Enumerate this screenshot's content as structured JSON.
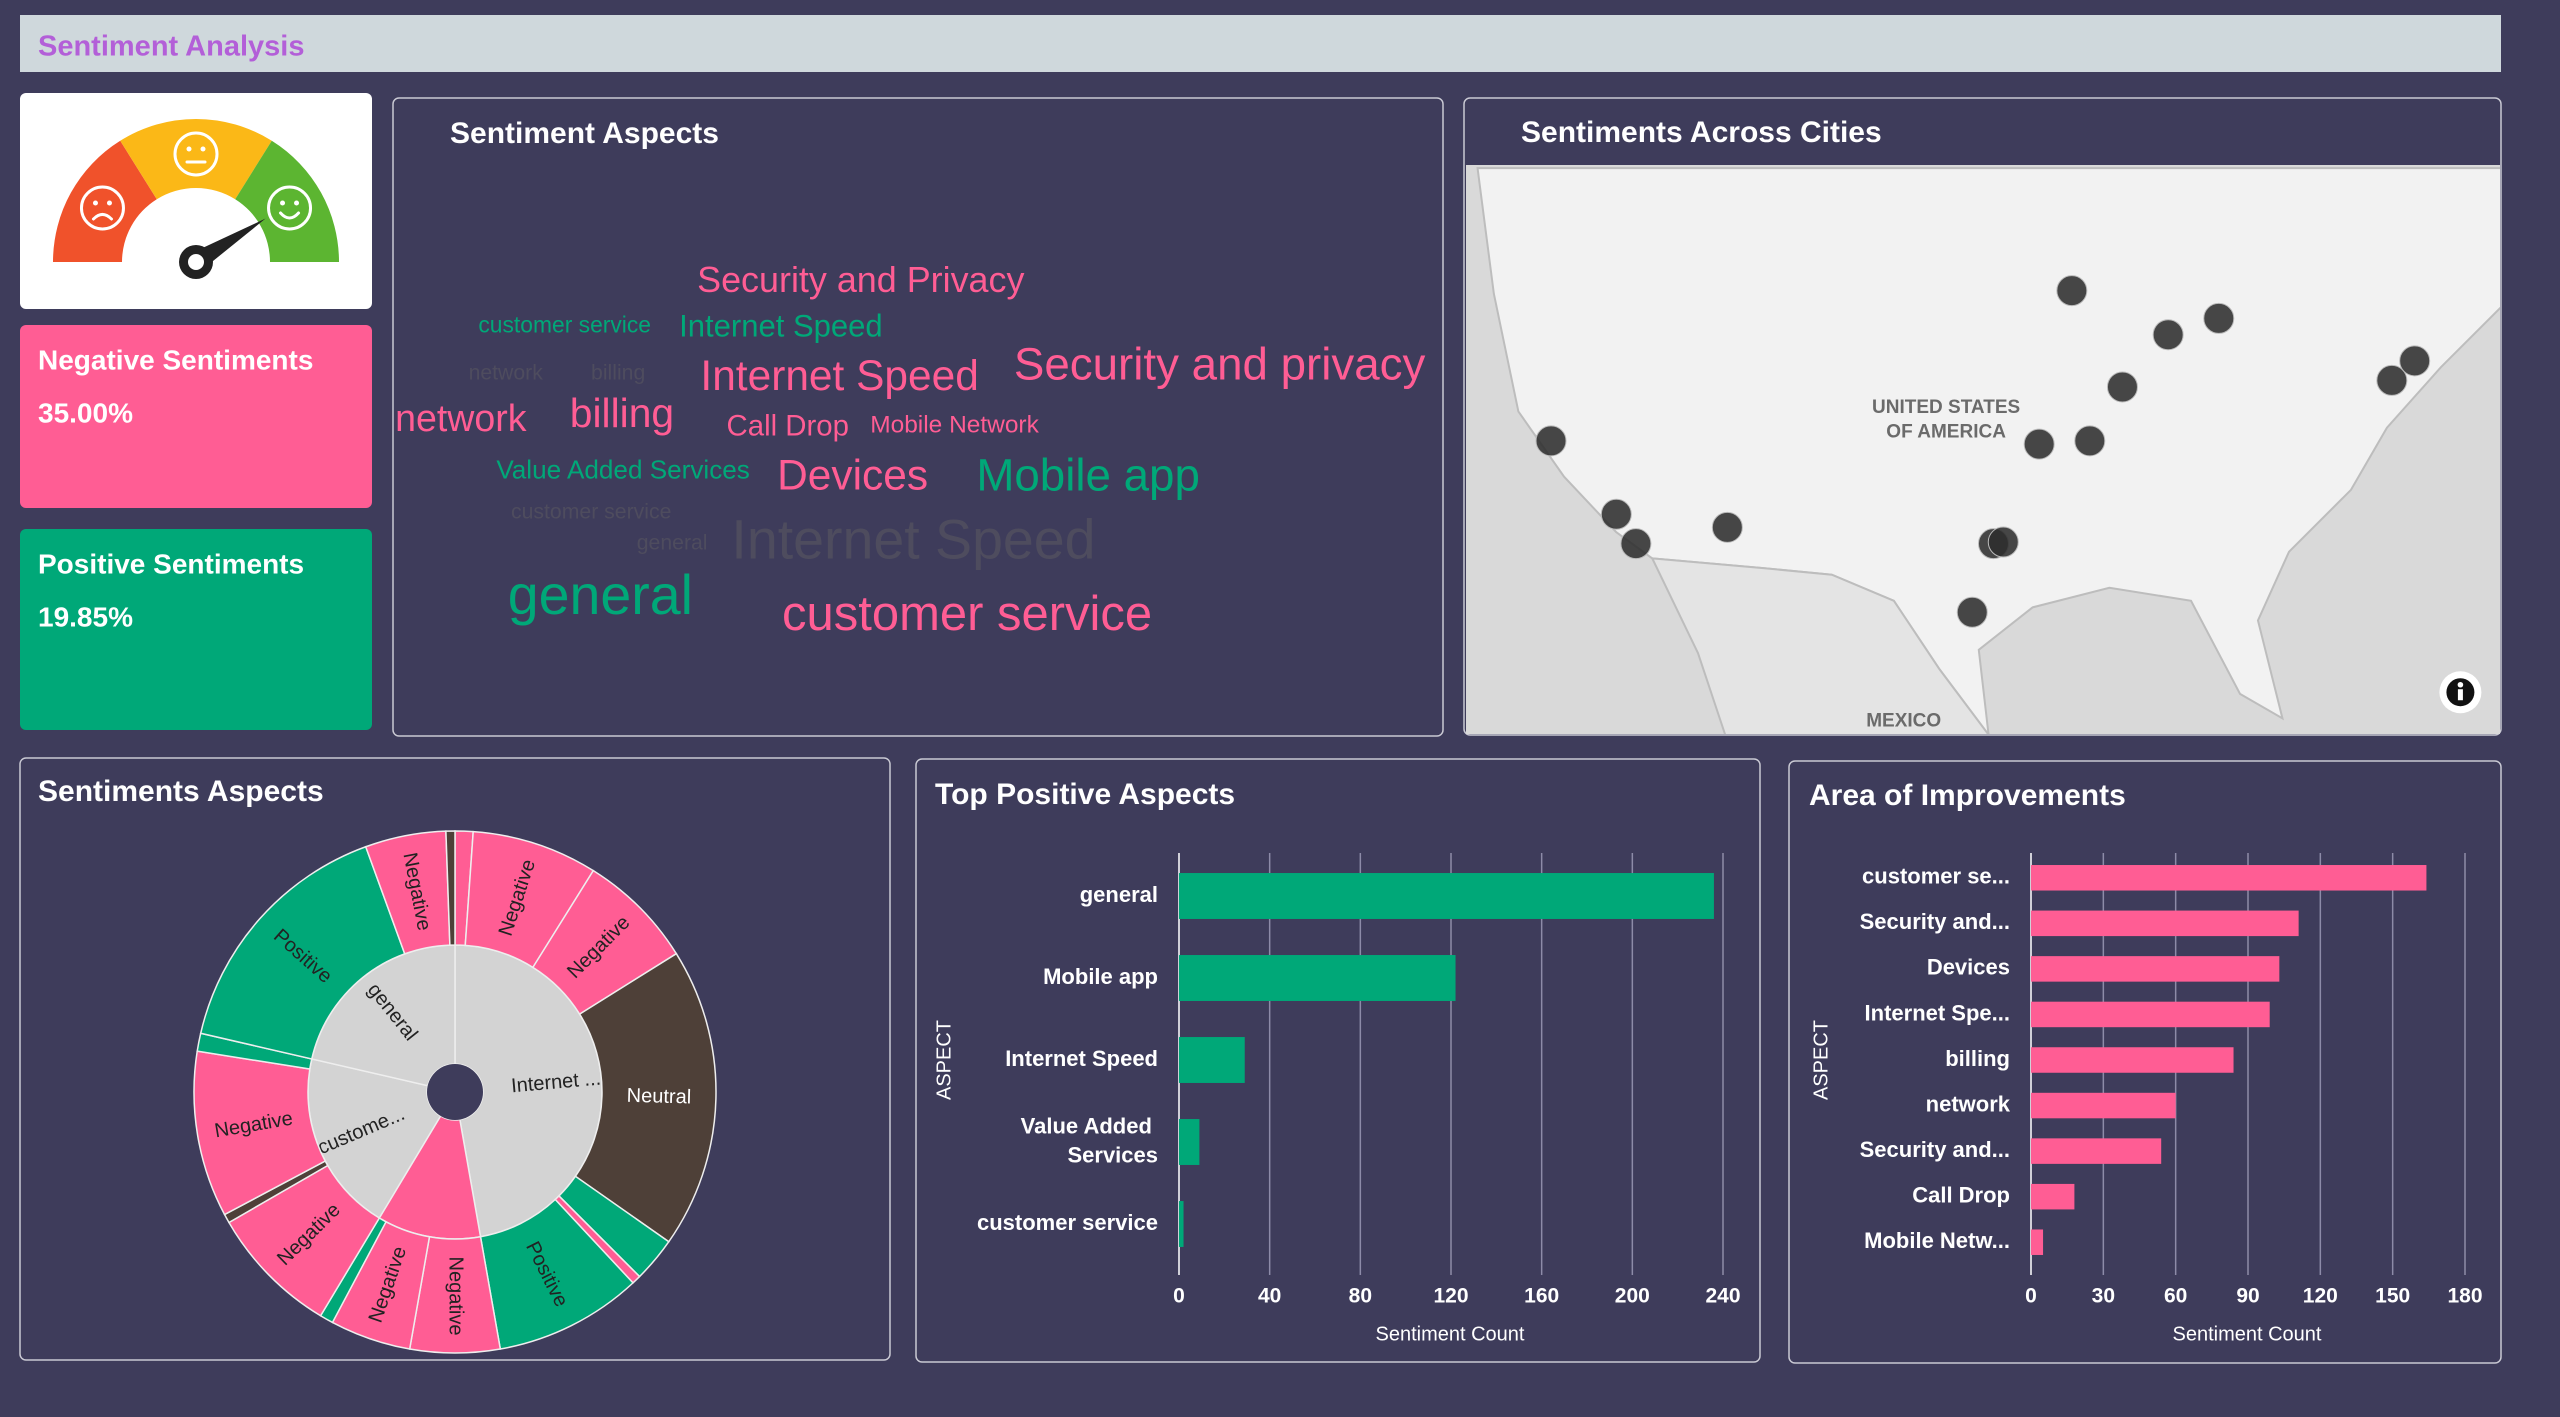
{
  "header": {
    "title": "Sentiment Analysis"
  },
  "kpis": [
    {
      "label": "Negative Sentiments",
      "value": "35.00%",
      "color": "#ff5d94"
    },
    {
      "label": "Positive Sentiments",
      "value": "19.85%",
      "color": "#00a878"
    }
  ],
  "word_cloud": {
    "title": "Sentiment Aspects",
    "words": [
      {
        "text": "Security and Privacy",
        "color": "#ff5d94"
      },
      {
        "text": "customer service",
        "color": "#00a878"
      },
      {
        "text": "Internet Speed",
        "color": "#00a878"
      },
      {
        "text": "network",
        "color": "#4e4c5e"
      },
      {
        "text": "billing",
        "color": "#4e4c5e"
      },
      {
        "text": "Internet Speed",
        "color": "#ff5d94"
      },
      {
        "text": "Security and privacy",
        "color": "#ff5d94"
      },
      {
        "text": "network",
        "color": "#ff5d94"
      },
      {
        "text": "billing",
        "color": "#ff5d94"
      },
      {
        "text": "Call Drop",
        "color": "#ff5d94"
      },
      {
        "text": "Mobile Network",
        "color": "#ff5d94"
      },
      {
        "text": "Value Added Services",
        "color": "#00a878"
      },
      {
        "text": "Devices",
        "color": "#ff5d94"
      },
      {
        "text": "Mobile app",
        "color": "#00a878"
      },
      {
        "text": "customer service",
        "color": "#4e4c5e"
      },
      {
        "text": "general",
        "color": "#4e4c5e"
      },
      {
        "text": "Internet Speed",
        "color": "#4e4c5e"
      },
      {
        "text": "general",
        "color": "#00a878"
      },
      {
        "text": "customer service",
        "color": "#ff5d94"
      }
    ]
  },
  "map": {
    "title": "Sentiments Across Cities",
    "labels": [
      "UNITED STATES",
      "OF AMERICA",
      "MEXICO"
    ]
  },
  "chart_data": [
    {
      "type": "sunburst",
      "title": "Sentiments Aspects",
      "groups": [
        {
          "name": "Internet ...",
          "color": "#d3d3d3",
          "children": [
            {
              "name": null,
              "color": "#ff5d94",
              "value": 4
            },
            {
              "name": "Negative",
              "color": "#ff5d94",
              "value": 28
            },
            {
              "name": "Negative",
              "color": "#ff5d94",
              "value": 26
            },
            {
              "name": "Neutral",
              "color": "#4e4038",
              "value": 67
            },
            {
              "name": null,
              "color": "#00a878",
              "value": 10
            },
            {
              "name": null,
              "color": "#ff5d94",
              "value": 2
            },
            {
              "name": "Positive",
              "color": "#00a878",
              "value": 33
            }
          ]
        },
        {
          "name": null,
          "color": "#ff5d94",
          "children": [
            {
              "name": "Negative",
              "color": "#ff5d94",
              "value": 20
            },
            {
              "name": "Negative",
              "color": "#ff5d94",
              "value": 18
            },
            {
              "name": null,
              "color": "#00a878",
              "value": 3
            }
          ]
        },
        {
          "name": "custome...",
          "color": "#d3d3d3",
          "children": [
            {
              "name": "Negative",
              "color": "#ff5d94",
              "value": 29
            },
            {
              "name": null,
              "color": "#4e4038",
              "value": 2
            },
            {
              "name": "Negative",
              "color": "#ff5d94",
              "value": 37
            },
            {
              "name": null,
              "color": "#00a878",
              "value": 4
            }
          ]
        },
        {
          "name": "general",
          "color": "#d3d3d3",
          "children": [
            {
              "name": "Positive",
              "color": "#00a878",
              "value": 57
            },
            {
              "name": "Negative",
              "color": "#ff5d94",
              "value": 18
            },
            {
              "name": null,
              "color": "#4e4038",
              "value": 2
            }
          ]
        }
      ]
    },
    {
      "type": "bar",
      "title": "Top Positive Aspects",
      "categories": [
        "general",
        "Mobile app",
        "Internet Speed",
        "Value Added Services",
        "customer service"
      ],
      "values": [
        236,
        122,
        29,
        9,
        2
      ],
      "color": "#00a878",
      "xlim": [
        0,
        240
      ],
      "xticks": [
        0,
        40,
        80,
        120,
        160,
        200,
        240
      ],
      "x_label": "Sentiment Count",
      "y_label": "ASPECT",
      "grid": true
    },
    {
      "type": "bar",
      "title": "Area of Improvements",
      "categories": [
        "customer se...",
        "Security and...",
        "Devices",
        "Internet Spe...",
        "billing",
        "network",
        "Security and...",
        "Call Drop",
        "Mobile Netw..."
      ],
      "values": [
        164,
        111,
        103,
        99,
        84,
        60,
        54,
        18,
        5
      ],
      "color": "#ff5d94",
      "xlim": [
        0,
        180
      ],
      "xticks": [
        0,
        30,
        60,
        90,
        120,
        150,
        180
      ],
      "x_label": "Sentiment Count",
      "y_label": "ASPECT",
      "grid": true
    }
  ]
}
